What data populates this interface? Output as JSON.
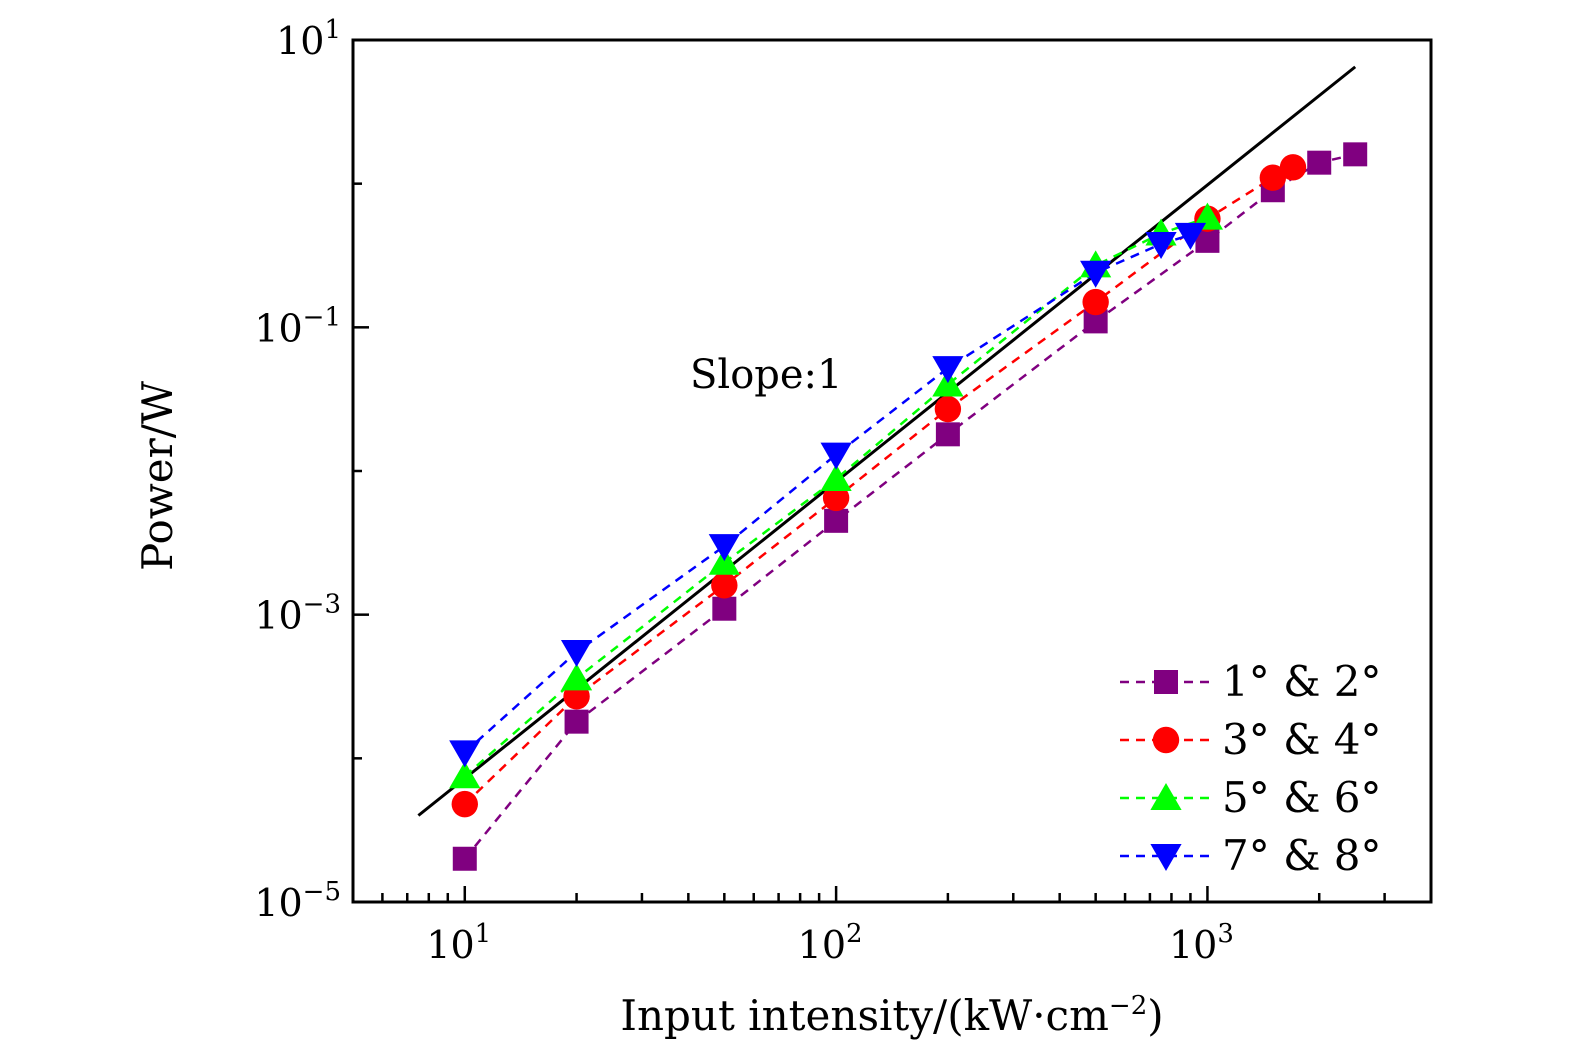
{
  "chart_data": {
    "type": "scatter",
    "title": "",
    "xlabel": "Input intensity/(kW·cm",
    "xlabel_sup": "−2",
    "xlabel_end": ")",
    "ylabel": "Power/W",
    "xscale": "log",
    "yscale": "log",
    "xlim": [
      5,
      4000
    ],
    "ylim": [
      1e-05,
      10
    ],
    "x_ticks": [
      {
        "base": "10",
        "exp": "1"
      },
      {
        "base": "10",
        "exp": "2"
      },
      {
        "base": "10",
        "exp": "3"
      }
    ],
    "y_ticks": [
      {
        "base": "10",
        "exp": "−5"
      },
      {
        "base": "10",
        "exp": "−3"
      },
      {
        "base": "10",
        "exp": "−1"
      },
      {
        "base": "10",
        "exp": "1"
      }
    ],
    "x_tick_values": [
      10,
      100,
      1000
    ],
    "y_tick_values": [
      1e-05,
      0.001,
      0.1,
      10
    ],
    "y_minor_values": [
      0.0001,
      0.01,
      1
    ],
    "grid": false,
    "legend_position": "bottom-right",
    "annotation": "Slope:1",
    "slope_line": {
      "x": [
        7.5,
        2500
      ],
      "y": [
        4e-05,
        6.5
      ],
      "color": "#000000"
    },
    "series": [
      {
        "name": "1° & 2°",
        "marker": "square",
        "color": "#800080",
        "x": [
          10,
          20,
          50,
          100,
          200,
          500,
          1000,
          1500,
          2000,
          2500
        ],
        "y": [
          2e-05,
          0.00018,
          0.0011,
          0.0045,
          0.018,
          0.11,
          0.4,
          0.9,
          1.4,
          1.6
        ]
      },
      {
        "name": "3° & 4°",
        "marker": "circle",
        "color": "#ff0000",
        "x": [
          10,
          20,
          50,
          100,
          200,
          500,
          1000,
          1500,
          1700
        ],
        "y": [
          4.8e-05,
          0.00027,
          0.0016,
          0.0065,
          0.027,
          0.15,
          0.57,
          1.1,
          1.3
        ]
      },
      {
        "name": "5° & 6°",
        "marker": "triangle-up",
        "color": "#00ff00",
        "x": [
          10,
          20,
          50,
          100,
          200,
          500,
          750,
          1000
        ],
        "y": [
          7.5e-05,
          0.00036,
          0.0023,
          0.0088,
          0.04,
          0.27,
          0.45,
          0.58
        ]
      },
      {
        "name": "7° & 8°",
        "marker": "triangle-down",
        "color": "#0000ff",
        "x": [
          10,
          20,
          50,
          100,
          200,
          500,
          750,
          900
        ],
        "y": [
          0.00011,
          0.00055,
          0.003,
          0.013,
          0.052,
          0.24,
          0.38,
          0.44
        ]
      }
    ]
  }
}
